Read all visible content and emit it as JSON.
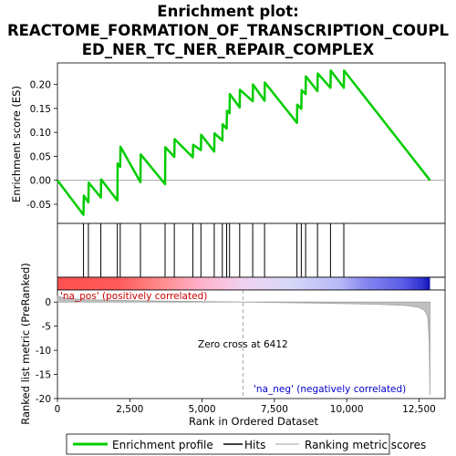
{
  "chart_data": {
    "type": "line",
    "title_lines": [
      "Enrichment plot:",
      "REACTOME_FORMATION_OF_TRANSCRIPTION_COUPL",
      "ED_NER_TC_NER_REPAIR_COMPLEX"
    ],
    "top_panel": {
      "ylabel": "Enrichment score (ES)",
      "ylim": [
        -0.09,
        0.245
      ],
      "yticks": [
        -0.05,
        0.0,
        0.05,
        0.1,
        0.15,
        0.2
      ],
      "ytick_labels": [
        "-0.05",
        "0.00",
        "0.05",
        "0.10",
        "0.15",
        "0.20"
      ],
      "series": [
        {
          "name": "Enrichment profile",
          "color": "#00cc00",
          "x": [
            0,
            900,
            910,
            1070,
            1080,
            1500,
            1510,
            2070,
            2080,
            2170,
            2180,
            2870,
            2880,
            3720,
            3730,
            4040,
            4050,
            4680,
            4690,
            4960,
            4970,
            5420,
            5430,
            5700,
            5710,
            5850,
            5860,
            5950,
            5960,
            6300,
            6310,
            6750,
            6760,
            7160,
            7170,
            8280,
            8290,
            8430,
            8440,
            8580,
            8590,
            8990,
            9000,
            9440,
            9450,
            9900,
            9910,
            12880
          ],
          "y": [
            0.0,
            -0.072,
            -0.032,
            -0.046,
            -0.005,
            -0.036,
            0.002,
            -0.042,
            0.035,
            0.028,
            0.07,
            -0.004,
            0.054,
            -0.008,
            0.069,
            0.049,
            0.086,
            0.048,
            0.074,
            0.063,
            0.095,
            0.06,
            0.098,
            0.083,
            0.117,
            0.108,
            0.145,
            0.14,
            0.18,
            0.152,
            0.189,
            0.165,
            0.2,
            0.166,
            0.204,
            0.12,
            0.158,
            0.149,
            0.188,
            0.18,
            0.217,
            0.186,
            0.223,
            0.193,
            0.229,
            0.193,
            0.229,
            0.0
          ]
        }
      ]
    },
    "hits": [
      900,
      1070,
      1500,
      2070,
      2170,
      2870,
      3720,
      4040,
      4680,
      4960,
      5420,
      5700,
      5850,
      5950,
      6300,
      6750,
      7160,
      8280,
      8430,
      8580,
      8990,
      9440,
      9900
    ],
    "colorbar_stops": [
      {
        "pos": 0.0,
        "color": "#ff5050"
      },
      {
        "pos": 0.16,
        "color": "#ff5a5a"
      },
      {
        "pos": 0.28,
        "color": "#ff8c8c"
      },
      {
        "pos": 0.38,
        "color": "#ffb0c8"
      },
      {
        "pos": 0.5,
        "color": "#f0d2f0"
      },
      {
        "pos": 0.62,
        "color": "#d8d8f8"
      },
      {
        "pos": 0.76,
        "color": "#b8b8f8"
      },
      {
        "pos": 0.82,
        "color": "#8a8af0"
      },
      {
        "pos": 0.93,
        "color": "#5a5ae8"
      },
      {
        "pos": 0.98,
        "color": "#3030d0"
      },
      {
        "pos": 1.0,
        "color": "#1010b0"
      }
    ],
    "bottom_panel": {
      "ylabel": "Ranked list metric (PreRanked)",
      "ylim": [
        -20,
        2.5
      ],
      "yticks": [
        0,
        -5,
        -10,
        -15,
        -20
      ],
      "ytick_labels": [
        "0",
        "-5",
        "-10",
        "-15",
        "-20"
      ],
      "metric_x": [
        0,
        300,
        1000,
        3000,
        6412,
        9000,
        11000,
        12000,
        12500,
        12700,
        12800,
        12850,
        12880
      ],
      "metric_y": [
        1.2,
        0.8,
        0.5,
        0.25,
        0.0,
        -0.2,
        -0.45,
        -0.7,
        -1.1,
        -1.8,
        -3.0,
        -8.0,
        -19.3
      ],
      "zero_cross_x": 6412,
      "zero_cross_text": "Zero cross at 6412",
      "pos_label": "'na_pos' (positively correlated)",
      "neg_label": "'na_neg' (negatively correlated)",
      "pos_color": "#cc0000",
      "neg_color": "#0000cc"
    },
    "xlabel": "Rank in Ordered Dataset",
    "xlim": [
      0,
      13400
    ],
    "xticks": [
      0,
      2500,
      5000,
      7500,
      10000,
      12500
    ],
    "xtick_labels": [
      "0",
      "2,500",
      "5,000",
      "7,500",
      "10,000",
      "12,500"
    ],
    "legend": {
      "position": "bottom",
      "items": [
        {
          "label": "Enrichment profile",
          "color": "#00cc00",
          "kind": "thick-line"
        },
        {
          "label": "Hits",
          "color": "#000000",
          "kind": "line"
        },
        {
          "label": "Ranking metric scores",
          "color": "#c0c0c0",
          "kind": "line"
        }
      ]
    }
  }
}
